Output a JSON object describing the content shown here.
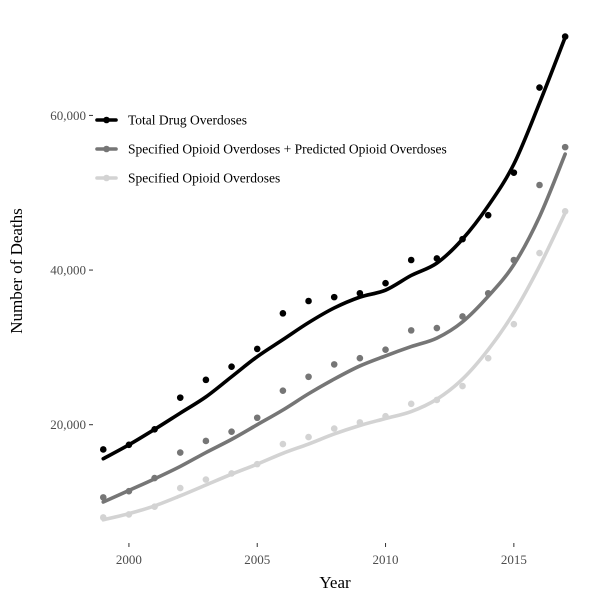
{
  "chart_data": {
    "type": "line",
    "title": "",
    "xlabel": "Year",
    "ylabel": "Number of Deaths",
    "xlim": [
      1998.6,
      2017.5
    ],
    "ylim": [
      4700,
      72600
    ],
    "x_ticks": [
      2000,
      2005,
      2010,
      2015
    ],
    "x_tick_labels": [
      "2000",
      "2005",
      "2010",
      "2015"
    ],
    "y_ticks": [
      20000,
      40000,
      60000
    ],
    "y_tick_labels": [
      "20,000",
      "40,000",
      "60,000"
    ],
    "grid": false,
    "legend_position": "top-left",
    "x": [
      1999,
      2000,
      2001,
      2002,
      2003,
      2004,
      2005,
      2006,
      2007,
      2008,
      2009,
      2010,
      2011,
      2012,
      2013,
      2014,
      2015,
      2016,
      2017
    ],
    "series": [
      {
        "name": "Total Drug Overdoses",
        "color": "#000000",
        "points": [
          16800,
          17400,
          19400,
          23500,
          25800,
          27500,
          29800,
          34400,
          36000,
          36500,
          37000,
          38300,
          41300,
          41500,
          44000,
          47100,
          52600,
          63600,
          70200
        ],
        "smooth": [
          15600,
          17400,
          19400,
          21500,
          23600,
          26200,
          28800,
          31000,
          33200,
          35100,
          36500,
          37400,
          39300,
          40900,
          44000,
          48300,
          53700,
          61600,
          70100
        ]
      },
      {
        "name": "Specified Opioid Overdoses + Predicted Opioid Overdoses",
        "color": "#767676",
        "points": [
          10600,
          11400,
          13100,
          16400,
          17900,
          19100,
          20900,
          24400,
          26200,
          27800,
          28600,
          29700,
          32200,
          32500,
          34000,
          37000,
          41300,
          51000,
          55900
        ],
        "smooth": [
          10000,
          11500,
          13000,
          14600,
          16400,
          18100,
          20000,
          21900,
          24000,
          25900,
          27600,
          28900,
          30100,
          31200,
          33300,
          36600,
          40700,
          46900,
          55000
        ]
      },
      {
        "name": "Specified Opioid Overdoses",
        "color": "#d3d3d3",
        "points": [
          8000,
          8400,
          9400,
          11800,
          12900,
          13700,
          14900,
          17500,
          18400,
          19500,
          20300,
          21100,
          22700,
          23200,
          25000,
          28600,
          33000,
          42200,
          47600
        ],
        "smooth": [
          7700,
          8500,
          9500,
          10800,
          12200,
          13600,
          14900,
          16300,
          17500,
          18800,
          19900,
          20800,
          21700,
          23300,
          25900,
          29700,
          34500,
          40500,
          47400
        ]
      }
    ]
  }
}
